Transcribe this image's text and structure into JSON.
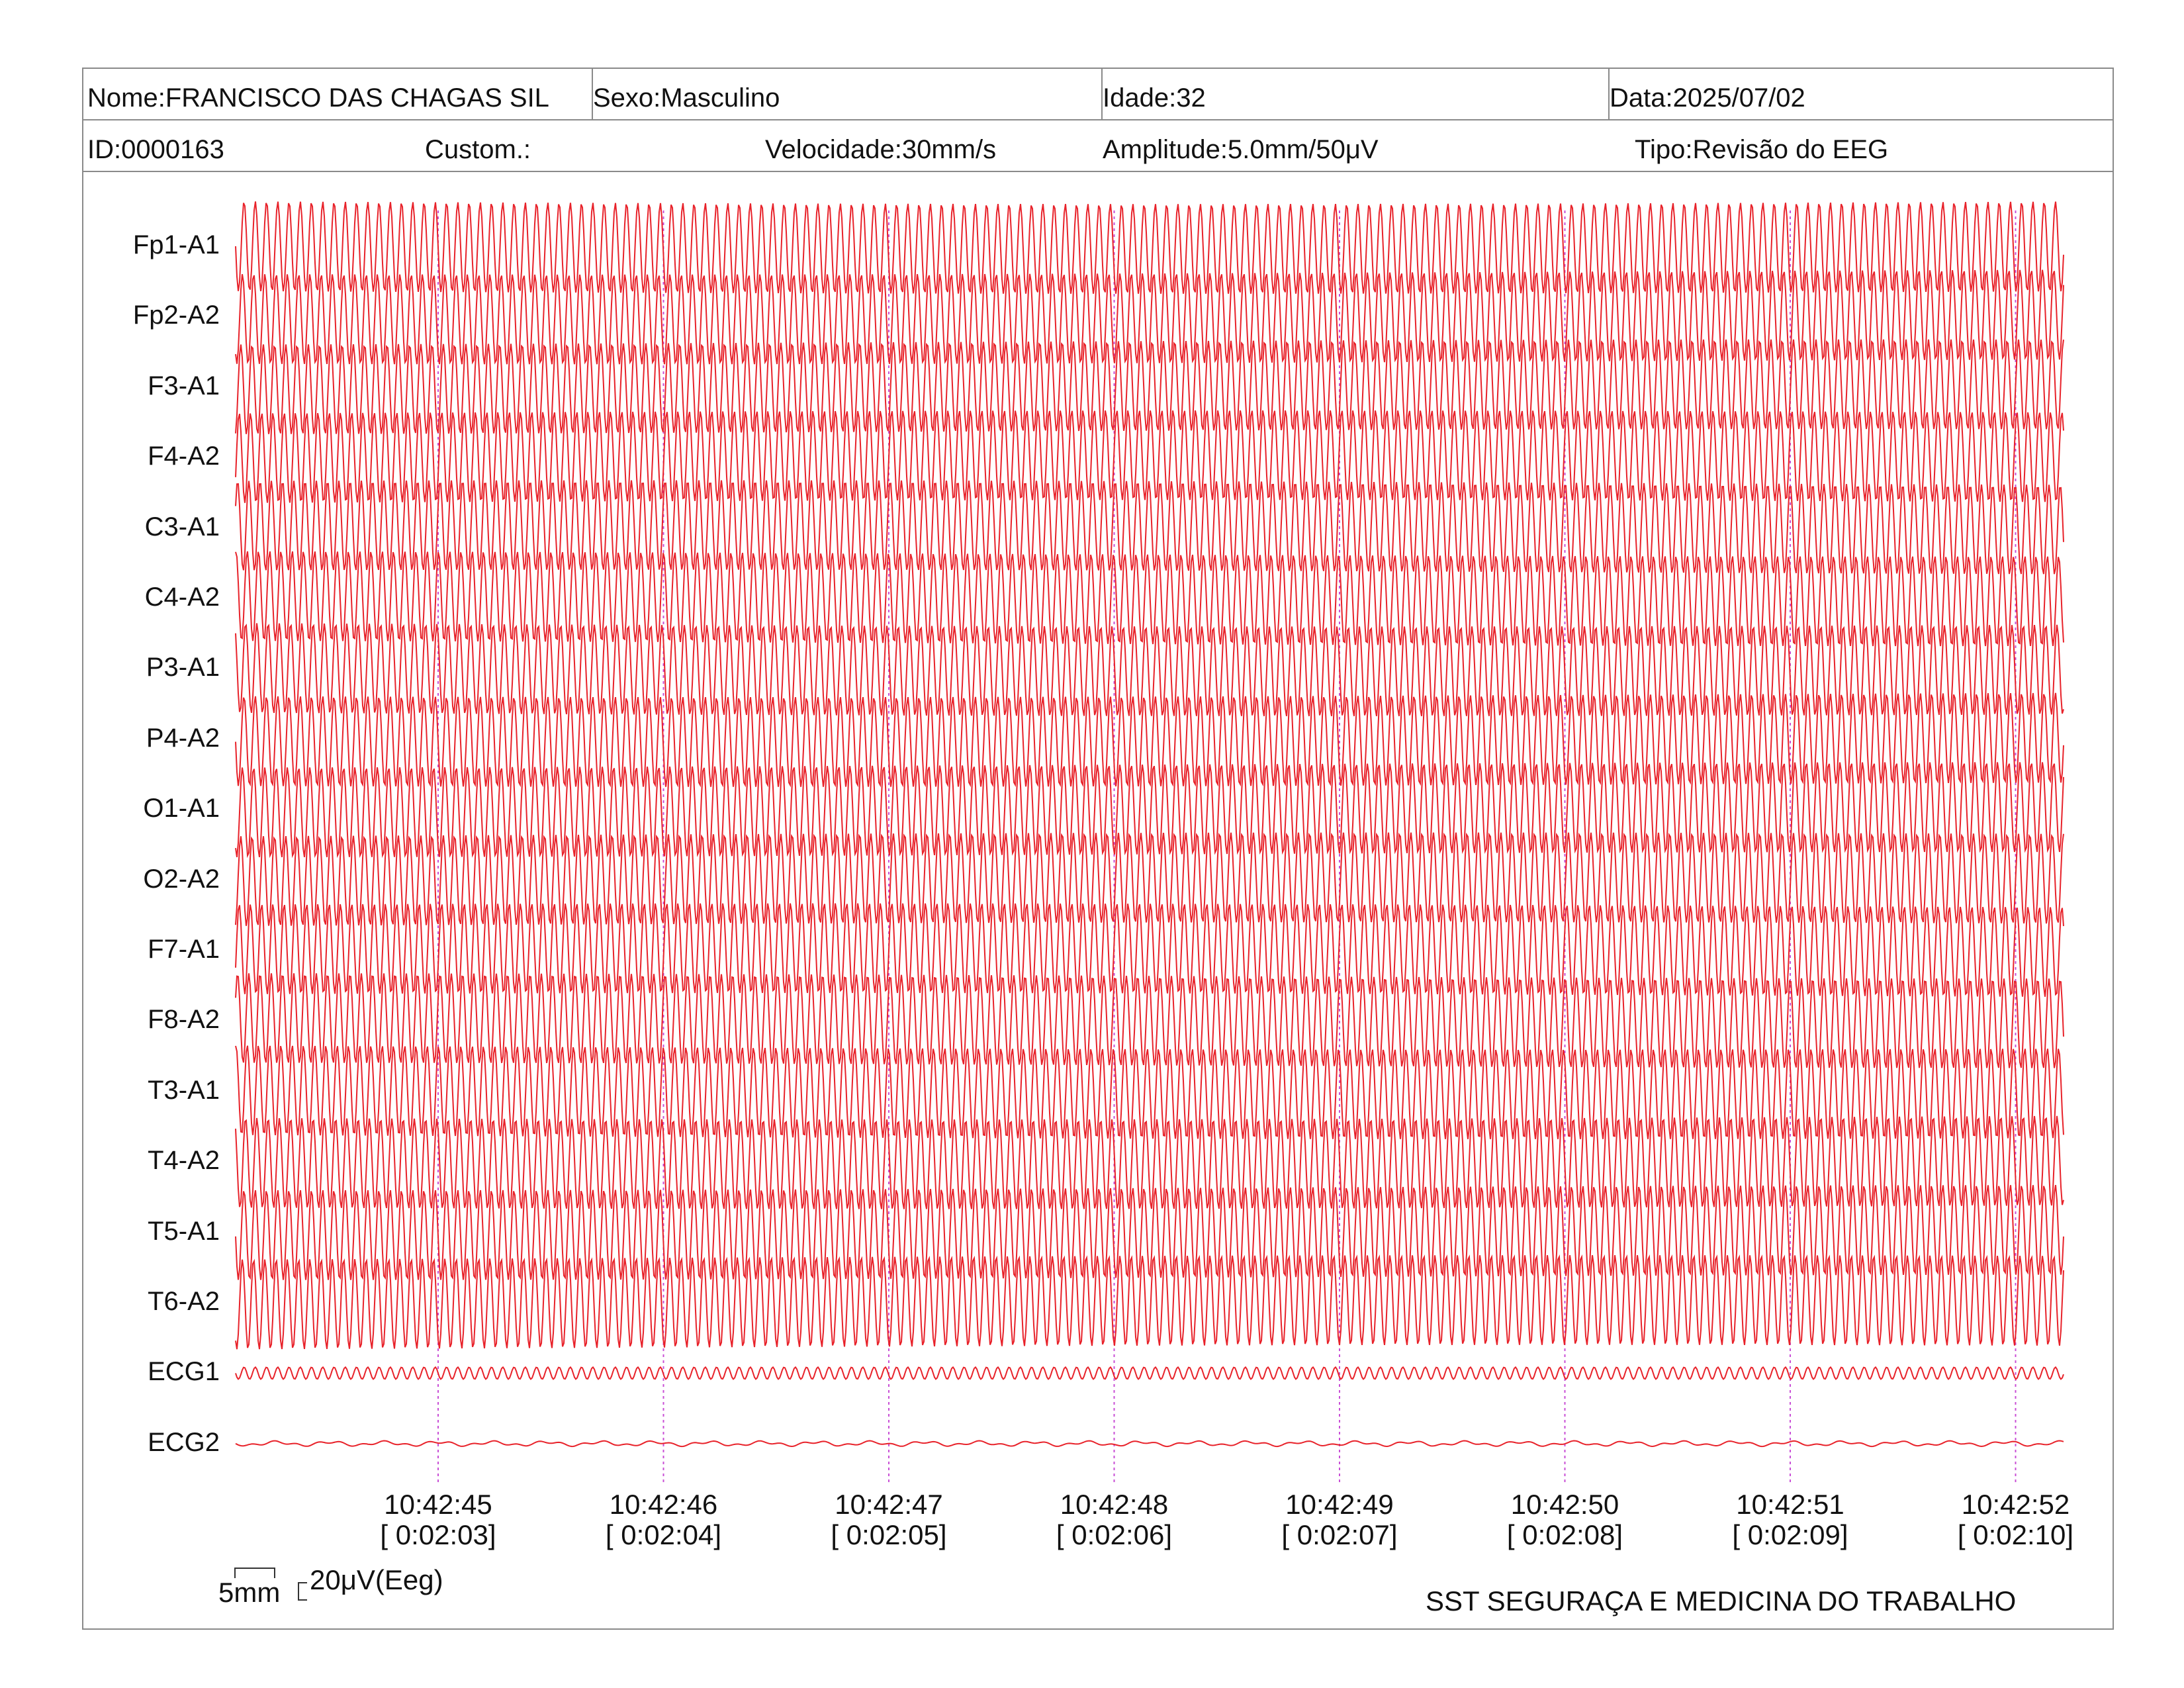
{
  "header": {
    "name": "Nome:FRANCISCO DAS CHAGAS SIL",
    "sex": "Sexo:Masculino",
    "age": "Idade:32",
    "date": "Data:2025/07/02",
    "id": "ID:0000163",
    "custom": "Custom.:",
    "speed": "Velocidade:30mm/s",
    "amplitude": "Amplitude:5.0mm/50μV",
    "type": "Tipo:Revisão do EEG"
  },
  "channels": [
    "Fp1-A1",
    "Fp2-A2",
    "F3-A1",
    "F4-A2",
    "C3-A1",
    "C4-A2",
    "P3-A1",
    "P4-A2",
    "O1-A1",
    "O2-A2",
    "F7-A1",
    "F8-A2",
    "T3-A1",
    "T4-A2",
    "T5-A1",
    "T6-A2",
    "ECG1",
    "ECG2"
  ],
  "time_marks": [
    {
      "clock": "10:42:45",
      "elapsed": "[ 0:02:03]"
    },
    {
      "clock": "10:42:46",
      "elapsed": "[ 0:02:04]"
    },
    {
      "clock": "10:42:47",
      "elapsed": "[ 0:02:05]"
    },
    {
      "clock": "10:42:48",
      "elapsed": "[ 0:02:06]"
    },
    {
      "clock": "10:42:49",
      "elapsed": "[ 0:02:07]"
    },
    {
      "clock": "10:42:50",
      "elapsed": "[ 0:02:08]"
    },
    {
      "clock": "10:42:51",
      "elapsed": "[ 0:02:09]"
    },
    {
      "clock": "10:42:52",
      "elapsed": "[ 0:02:10]"
    }
  ],
  "scale": {
    "time": "5mm",
    "amplitude": "20μV(Eeg)"
  },
  "footer": {
    "organization": "SST SEGURAÇA E MEDICINA DO TRABALHO"
  },
  "colors": {
    "trace": "#e8222a",
    "marker": "#c94fd6",
    "border": "#8a8a8a"
  }
}
